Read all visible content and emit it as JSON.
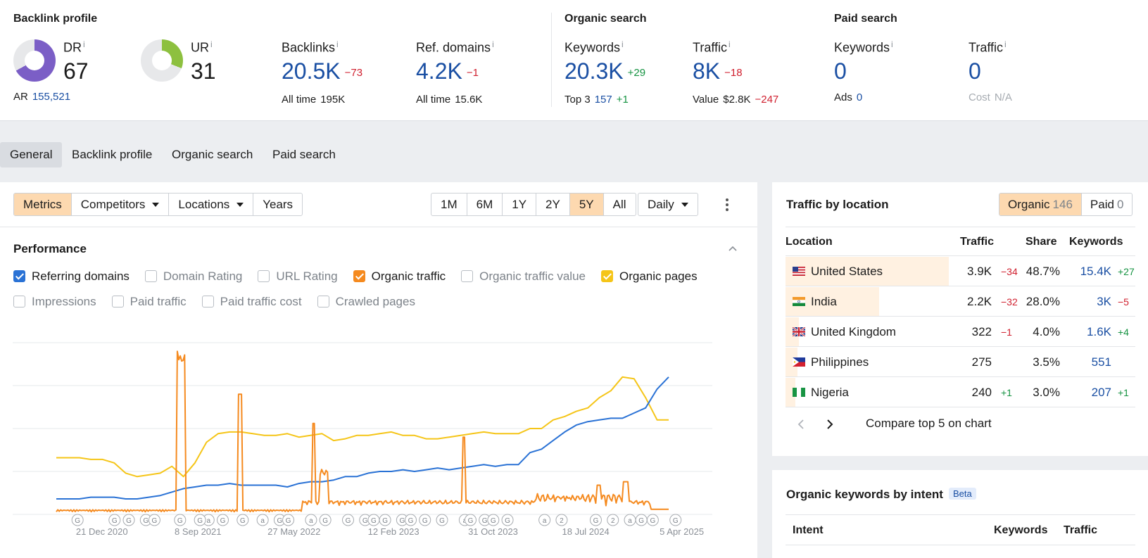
{
  "backlink_profile": {
    "title": "Backlink profile",
    "dr": {
      "label": "DR",
      "value": "67",
      "fraction": 0.67,
      "color": "#7b5ec6"
    },
    "ar": {
      "label": "AR",
      "value": "155,521"
    },
    "ur": {
      "label": "UR",
      "value": "31",
      "fraction": 0.31,
      "color": "#8dc03f"
    },
    "backlinks": {
      "label": "Backlinks",
      "value": "20.5K",
      "delta": "−73",
      "sub_label": "All time",
      "sub_value": "195K"
    },
    "ref_domains": {
      "label": "Ref. domains",
      "value": "4.2K",
      "delta": "−1",
      "sub_label": "All time",
      "sub_value": "15.6K"
    }
  },
  "organic_search": {
    "title": "Organic search",
    "keywords": {
      "label": "Keywords",
      "value": "20.3K",
      "delta": "+29",
      "sub_label": "Top 3",
      "sub_value": "157",
      "sub_delta": "+1"
    },
    "traffic": {
      "label": "Traffic",
      "value": "8K",
      "delta": "−18",
      "sub_label": "Value",
      "sub_value": "$2.8K",
      "sub_delta": "−247"
    }
  },
  "paid_search": {
    "title": "Paid search",
    "keywords": {
      "label": "Keywords",
      "value": "0",
      "sub_label": "Ads",
      "sub_value": "0"
    },
    "traffic": {
      "label": "Traffic",
      "value": "0",
      "sub_label": "Cost",
      "sub_value": "N/A"
    }
  },
  "info_glyph": "i",
  "tabs": [
    "General",
    "Backlink profile",
    "Organic search",
    "Paid search"
  ],
  "toolbar": {
    "metrics": "Metrics",
    "competitors": "Competitors",
    "locations": "Locations",
    "years": "Years",
    "ranges": [
      "1M",
      "6M",
      "1Y",
      "2Y",
      "5Y",
      "All"
    ],
    "active_range": "5Y",
    "interval": "Daily"
  },
  "performance": {
    "title": "Performance",
    "checkboxes_row1": [
      {
        "label": "Referring domains",
        "checked": true,
        "color": "#2a72d5"
      },
      {
        "label": "Domain Rating",
        "checked": false
      },
      {
        "label": "URL Rating",
        "checked": false
      },
      {
        "label": "Organic traffic",
        "checked": true,
        "color": "#f58a1f"
      },
      {
        "label": "Organic traffic value",
        "checked": false
      },
      {
        "label": "Organic pages",
        "checked": true,
        "color": "#f5c518"
      }
    ],
    "checkboxes_row2": [
      {
        "label": "Impressions",
        "checked": false
      },
      {
        "label": "Paid traffic",
        "checked": false
      },
      {
        "label": "Paid traffic cost",
        "checked": false
      },
      {
        "label": "Crawled pages",
        "checked": false
      }
    ]
  },
  "chart_data": {
    "type": "line",
    "x_tick_labels": [
      "21 Dec 2020",
      "8 Sep 2021",
      "27 May 2022",
      "12 Feb 2023",
      "31 Oct 2023",
      "18 Jul 2024",
      "5 Apr 2025"
    ],
    "x_tick_fractions": [
      0.13,
      0.27,
      0.41,
      0.555,
      0.7,
      0.835,
      0.975
    ],
    "grid": true,
    "annotation_markers": [
      "G",
      "G",
      "G",
      "G",
      "G",
      "G",
      "a",
      "G",
      "G",
      "G",
      "a",
      "G",
      "G",
      "a",
      "G",
      "G",
      "G",
      "G",
      "G",
      "G",
      "G",
      "G",
      "G",
      "a",
      "G",
      "G",
      "G",
      "G",
      "a",
      "2",
      "G",
      "2",
      "a",
      "G",
      "G",
      "G"
    ],
    "annotation_fractions": [
      0.02,
      0.085,
      0.11,
      0.14,
      0.155,
      0.2,
      0.25,
      0.235,
      0.275,
      0.31,
      0.345,
      0.375,
      0.39,
      0.43,
      0.455,
      0.495,
      0.525,
      0.54,
      0.56,
      0.59,
      0.605,
      0.63,
      0.66,
      0.7,
      0.71,
      0.735,
      0.75,
      0.775,
      0.84,
      0.87,
      0.93,
      0.96,
      0.99,
      1.01,
      1.03,
      1.07
    ],
    "series": [
      {
        "name": "Organic pages",
        "color": "#f5c518",
        "values": [
          0.33,
          0.33,
          0.33,
          0.32,
          0.32,
          0.3,
          0.24,
          0.22,
          0.23,
          0.24,
          0.28,
          0.22,
          0.3,
          0.42,
          0.47,
          0.48,
          0.48,
          0.47,
          0.46,
          0.46,
          0.47,
          0.45,
          0.46,
          0.47,
          0.43,
          0.44,
          0.46,
          0.46,
          0.47,
          0.48,
          0.46,
          0.46,
          0.44,
          0.44,
          0.45,
          0.46,
          0.47,
          0.48,
          0.47,
          0.47,
          0.47,
          0.5,
          0.5,
          0.55,
          0.57,
          0.6,
          0.62,
          0.68,
          0.72,
          0.8,
          0.79,
          0.68,
          0.55,
          0.55
        ]
      },
      {
        "name": "Referring domains",
        "color": "#2a72d5",
        "values": [
          0.09,
          0.09,
          0.09,
          0.1,
          0.1,
          0.1,
          0.09,
          0.09,
          0.1,
          0.11,
          0.13,
          0.15,
          0.16,
          0.17,
          0.17,
          0.18,
          0.17,
          0.17,
          0.17,
          0.17,
          0.16,
          0.18,
          0.19,
          0.19,
          0.2,
          0.22,
          0.22,
          0.24,
          0.25,
          0.25,
          0.26,
          0.25,
          0.26,
          0.27,
          0.26,
          0.27,
          0.28,
          0.29,
          0.28,
          0.29,
          0.29,
          0.36,
          0.38,
          0.43,
          0.48,
          0.52,
          0.54,
          0.55,
          0.56,
          0.56,
          0.59,
          0.62,
          0.73,
          0.8
        ]
      }
    ],
    "organic_traffic": {
      "name": "Organic traffic",
      "color": "#f58a1f"
    }
  },
  "traffic_by_location": {
    "title": "Traffic by location",
    "organic_label": "Organic",
    "organic_count": "146",
    "paid_label": "Paid",
    "paid_count": "0",
    "columns": [
      "Location",
      "Traffic",
      "Share",
      "Keywords"
    ],
    "rows": [
      {
        "country": "United States",
        "flag": "us-flag",
        "traffic": "3.9K",
        "traffic_delta": "−34",
        "share": "48.7%",
        "share_fraction": 0.487,
        "keywords": "15.4K",
        "keywords_delta": "+27"
      },
      {
        "country": "India",
        "flag": "india-flag",
        "traffic": "2.2K",
        "traffic_delta": "−32",
        "share": "28.0%",
        "share_fraction": 0.28,
        "keywords": "3K",
        "keywords_delta": "−5"
      },
      {
        "country": "United Kingdom",
        "flag": "uk-flag",
        "traffic": "322",
        "traffic_delta": "−1",
        "share": "4.0%",
        "share_fraction": 0.04,
        "keywords": "1.6K",
        "keywords_delta": "+4"
      },
      {
        "country": "Philippines",
        "flag": "philippines-flag",
        "traffic": "275",
        "traffic_delta": "",
        "share": "3.5%",
        "share_fraction": 0.035,
        "keywords": "551",
        "keywords_delta": ""
      },
      {
        "country": "Nigeria",
        "flag": "nigeria-flag",
        "traffic": "240",
        "traffic_delta": "+1",
        "share": "3.0%",
        "share_fraction": 0.03,
        "keywords": "207",
        "keywords_delta": "+1"
      }
    ],
    "compare_label": "Compare top 5 on chart"
  },
  "organic_keywords_by_intent": {
    "title": "Organic keywords by intent",
    "badge": "Beta",
    "columns": [
      "Intent",
      "Keywords",
      "Traffic"
    ]
  }
}
